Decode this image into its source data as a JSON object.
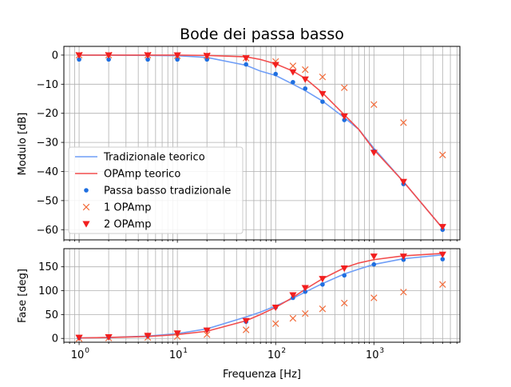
{
  "chart_data": [
    {
      "type": "line",
      "title": "Bode dei passa basso",
      "xlabel": "",
      "ylabel": "Modulo [dB]",
      "x_scale": "log",
      "xlim": [
        0.7,
        7500
      ],
      "ylim": [
        -63.5,
        3
      ],
      "yticks": [
        0,
        -10,
        -20,
        -30,
        -40,
        -50,
        -60
      ],
      "ytick_labels": [
        "0",
        "−10",
        "−20",
        "−30",
        "−40",
        "−50",
        "−60"
      ],
      "grid": "both (major and minor on log x)",
      "legend_position": "center-left",
      "series": [
        {
          "name": "Tradizionale teorico",
          "kind": "line",
          "color": "#6f9ef7",
          "x": [
            1,
            2,
            5,
            10,
            20,
            50,
            70,
            100,
            150,
            200,
            300,
            500,
            700,
            1000,
            2000,
            5000
          ],
          "y": [
            0.0,
            0.0,
            -0.1,
            -0.2,
            -0.8,
            -3.5,
            -5.5,
            -7.0,
            -10.0,
            -12.2,
            -15.8,
            -21.5,
            -25.5,
            -32.0,
            -43.5,
            -59.5
          ]
        },
        {
          "name": "OPAmp teorico",
          "kind": "line",
          "color": "#f24d4d",
          "x": [
            1,
            2,
            5,
            10,
            20,
            50,
            70,
            100,
            150,
            200,
            300,
            500,
            700,
            1000,
            2000,
            5000
          ],
          "y": [
            0.0,
            0.0,
            0.0,
            0.0,
            -0.1,
            -0.6,
            -1.5,
            -3.0,
            -5.5,
            -8.0,
            -13.0,
            -20.5,
            -25.5,
            -32.5,
            -43.5,
            -59.5
          ]
        },
        {
          "name": "Passa basso tradizionale",
          "kind": "points",
          "marker": "dot",
          "color": "#1f6fe0",
          "x": [
            1,
            2,
            5,
            10,
            20,
            50,
            100,
            150,
            200,
            300,
            500,
            1000,
            2000,
            5000
          ],
          "y": [
            -1.5,
            -1.5,
            -1.5,
            -1.5,
            -1.5,
            -3.2,
            -6.5,
            -9.3,
            -11.5,
            -16.0,
            -22.3,
            -33.0,
            -44.3,
            -60.0
          ]
        },
        {
          "name": "1 OPAmp",
          "kind": "points",
          "marker": "x",
          "color": "#f26b3a",
          "x": [
            1,
            2,
            5,
            10,
            20,
            50,
            100,
            150,
            200,
            300,
            500,
            1000,
            2000,
            5000
          ],
          "y": [
            0.0,
            0.0,
            0.0,
            -0.2,
            -0.2,
            -1.0,
            -2.2,
            -3.7,
            -5.0,
            -7.5,
            -11.2,
            -17.0,
            -23.2,
            -34.3
          ]
        },
        {
          "name": "2 OPAmp",
          "kind": "points",
          "marker": "triangle-down",
          "color": "#f21f1f",
          "x": [
            1,
            2,
            5,
            10,
            20,
            50,
            100,
            150,
            200,
            300,
            500,
            1000,
            2000,
            5000
          ],
          "y": [
            0.0,
            0.0,
            0.0,
            0.0,
            -0.2,
            -1.0,
            -3.3,
            -5.8,
            -8.3,
            -13.3,
            -21.0,
            -33.5,
            -43.5,
            -59.0
          ]
        }
      ]
    },
    {
      "type": "line",
      "title": "",
      "xlabel": "Frequenza [Hz]",
      "ylabel": "Fase [deg]",
      "x_scale": "log",
      "xlim": [
        0.7,
        7500
      ],
      "ylim": [
        -8,
        188
      ],
      "yticks": [
        0,
        50,
        100,
        150
      ],
      "ytick_labels": [
        "0",
        "50",
        "100",
        "150"
      ],
      "xticks": [
        1,
        10,
        100,
        1000
      ],
      "xtick_labels": [
        {
          "base": "10",
          "exp": "0"
        },
        {
          "base": "10",
          "exp": "1"
        },
        {
          "base": "10",
          "exp": "2"
        },
        {
          "base": "10",
          "exp": "3"
        }
      ],
      "grid": "both (major and minor on log x)",
      "series": [
        {
          "name": "Tradizionale teorico",
          "kind": "line",
          "color": "#6f9ef7",
          "x": [
            1,
            2,
            5,
            10,
            20,
            50,
            70,
            100,
            150,
            200,
            300,
            500,
            700,
            1000,
            2000,
            5000
          ],
          "y": [
            1,
            2,
            5,
            10,
            20,
            45,
            55,
            68,
            84,
            97,
            115,
            135,
            145,
            155,
            167,
            175
          ]
        },
        {
          "name": "OPAmp teorico",
          "kind": "line",
          "color": "#f24d4d",
          "x": [
            1,
            2,
            5,
            10,
            20,
            50,
            70,
            100,
            150,
            200,
            300,
            500,
            700,
            1000,
            2000,
            5000
          ],
          "y": [
            1,
            2,
            4,
            8,
            15,
            37,
            50,
            65,
            86,
            103,
            125,
            148,
            158,
            165,
            173,
            178
          ]
        },
        {
          "name": "Passa basso tradizionale",
          "kind": "points",
          "marker": "dot",
          "color": "#1f6fe0",
          "x": [
            1,
            2,
            5,
            10,
            20,
            50,
            100,
            150,
            200,
            300,
            500,
            1000,
            2000,
            5000
          ],
          "y": [
            1,
            2,
            5,
            10,
            18,
            35,
            65,
            85,
            98,
            113,
            132,
            155,
            165,
            166
          ]
        },
        {
          "name": "1 OPAmp",
          "kind": "points",
          "marker": "x",
          "color": "#f26b3a",
          "x": [
            1,
            2,
            5,
            10,
            20,
            50,
            100,
            150,
            200,
            300,
            500,
            1000,
            2000,
            5000
          ],
          "y": [
            0,
            1,
            2,
            4,
            8,
            18,
            31,
            42,
            52,
            62,
            74,
            85,
            97,
            113
          ]
        },
        {
          "name": "2 OPAmp",
          "kind": "points",
          "marker": "triangle-down",
          "color": "#f21f1f",
          "x": [
            1,
            2,
            5,
            10,
            20,
            50,
            100,
            150,
            200,
            300,
            500,
            1000,
            2000,
            5000
          ],
          "y": [
            2,
            3,
            6,
            11,
            17,
            37,
            65,
            91,
            106,
            125,
            147,
            172,
            172,
            176
          ]
        }
      ]
    }
  ]
}
